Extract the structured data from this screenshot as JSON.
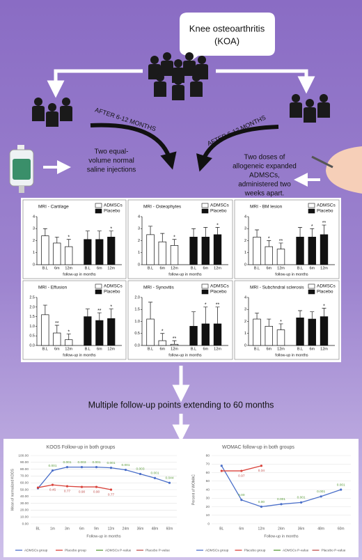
{
  "texts": {
    "bubble": [
      "Knee osteoarthritis",
      "(KOA)"
    ],
    "left_arrow": "AFTER 6-12 MONTHS",
    "right_arrow": "AFTER 6-12 MONTHS",
    "saline": [
      "Two equal-",
      "volume normal",
      "saline injections"
    ],
    "admscs": [
      "Two doses of",
      "allogeneic expanded",
      "ADMSCs,",
      "administered two",
      "weeks apart."
    ],
    "followup": "Multiple follow-up points extending to 60 months"
  },
  "chart_data": [
    {
      "type": "bar",
      "title": "MRI - Cartilage",
      "x_label": "follow-up in months",
      "categories": [
        "B.L",
        "6m",
        "12m",
        "B.L",
        "6m",
        "12m"
      ],
      "series": [
        {
          "name": "ADMSCs",
          "color": "#ffffff",
          "values": [
            2.4,
            1.8,
            1.5,
            null,
            null,
            null
          ],
          "errors": [
            0.6,
            0.5,
            0.6,
            null,
            null,
            null
          ],
          "stars": [
            null,
            null,
            "*",
            null,
            null,
            null
          ]
        },
        {
          "name": "Placebo",
          "color": "#111111",
          "values": [
            null,
            null,
            null,
            2.1,
            2.1,
            2.3
          ],
          "errors": [
            null,
            null,
            null,
            0.7,
            0.7,
            0.5
          ],
          "stars": [
            null,
            null,
            null,
            null,
            null,
            "*"
          ]
        }
      ],
      "ylim": [
        0,
        4
      ],
      "yticks": [
        0,
        1,
        2,
        3,
        4
      ]
    },
    {
      "type": "bar",
      "title": "MRI - Osteophytes",
      "x_label": "follow-up in months",
      "categories": [
        "B.L",
        "6m",
        "12m",
        "B.L",
        "6m",
        "12m"
      ],
      "series": [
        {
          "name": "ADMSCs",
          "color": "#ffffff",
          "values": [
            2.5,
            1.9,
            1.6,
            null,
            null,
            null
          ],
          "errors": [
            0.7,
            0.7,
            0.5,
            null,
            null,
            null
          ],
          "stars": [
            null,
            null,
            "*",
            null,
            null,
            null
          ]
        },
        {
          "name": "Placebo",
          "color": "#111111",
          "values": [
            null,
            null,
            null,
            2.3,
            2.3,
            2.5
          ],
          "errors": [
            null,
            null,
            null,
            0.7,
            0.8,
            0.6
          ],
          "stars": [
            null,
            null,
            null,
            null,
            null,
            "*"
          ]
        }
      ],
      "ylim": [
        0,
        4
      ],
      "yticks": [
        0,
        1,
        2,
        3,
        4
      ]
    },
    {
      "type": "bar",
      "title": "MRI - BM lesion",
      "x_label": "follow-up in months",
      "categories": [
        "B.L",
        "6m",
        "12m",
        "B.L",
        "6m",
        "12m"
      ],
      "series": [
        {
          "name": "ADMSCs",
          "color": "#ffffff",
          "values": [
            2.3,
            1.5,
            1.3,
            null,
            null,
            null
          ],
          "errors": [
            0.6,
            0.5,
            0.5,
            null,
            null,
            null
          ],
          "stars": [
            null,
            "*",
            "**",
            null,
            null,
            null
          ]
        },
        {
          "name": "Placebo",
          "color": "#111111",
          "values": [
            null,
            null,
            null,
            2.3,
            2.3,
            2.5
          ],
          "errors": [
            null,
            null,
            null,
            0.8,
            0.7,
            0.8
          ],
          "stars": [
            null,
            null,
            null,
            null,
            "*",
            "**"
          ]
        }
      ],
      "ylim": [
        0,
        4
      ],
      "yticks": [
        0,
        1,
        2,
        3,
        4
      ]
    },
    {
      "type": "bar",
      "title": "MRI - Effusion",
      "x_label": "follow-up in months",
      "categories": [
        "B.L",
        "6m",
        "12m",
        "B.L",
        "6m",
        "12m"
      ],
      "series": [
        {
          "name": "ADMSCs",
          "color": "#ffffff",
          "values": [
            1.6,
            0.65,
            0.3,
            null,
            null,
            null
          ],
          "errors": [
            0.5,
            0.4,
            0.3,
            null,
            null,
            null
          ],
          "stars": [
            null,
            "**",
            "*",
            null,
            null,
            null
          ]
        },
        {
          "name": "Placebo",
          "color": "#111111",
          "values": [
            null,
            null,
            null,
            1.5,
            1.3,
            1.4
          ],
          "errors": [
            null,
            null,
            null,
            0.4,
            0.4,
            0.5
          ],
          "stars": [
            null,
            null,
            null,
            null,
            "**",
            "*"
          ]
        }
      ],
      "ylim": [
        0,
        2.5
      ],
      "yticks": [
        {
          "value": 0,
          "label": "0.0"
        },
        0.5,
        {
          "value": 1,
          "label": "1.0"
        },
        1.5,
        {
          "value": 2,
          "label": "2.0"
        },
        2.5
      ]
    },
    {
      "type": "bar",
      "title": "MRI - Synovitis",
      "x_label": "follow-up in months",
      "categories": [
        "B.L",
        "6m",
        "12m",
        "B.L",
        "6m",
        "12m"
      ],
      "series": [
        {
          "name": "ADMSCs",
          "color": "#ffffff",
          "values": [
            1.1,
            0.2,
            0.05,
            null,
            null,
            null
          ],
          "errors": [
            0.7,
            0.3,
            0.15,
            null,
            null,
            null
          ],
          "stars": [
            null,
            "*",
            "**",
            null,
            null,
            null
          ]
        },
        {
          "name": "Placebo",
          "color": "#111111",
          "values": [
            null,
            null,
            null,
            0.8,
            0.9,
            0.9
          ],
          "errors": [
            null,
            null,
            null,
            0.6,
            0.7,
            0.7
          ],
          "stars": [
            null,
            null,
            null,
            null,
            "*",
            "**"
          ]
        }
      ],
      "ylim": [
        0,
        2
      ],
      "yticks": [
        {
          "value": 0,
          "label": "0.0"
        },
        0.5,
        {
          "value": 1,
          "label": "1.0"
        },
        1.5,
        {
          "value": 2,
          "label": "2.0"
        }
      ]
    },
    {
      "type": "bar",
      "title": "MRI - Subchndral sclerosis",
      "x_label": "follow-up in months",
      "categories": [
        "B.L",
        "6m",
        "12m",
        "B.L",
        "6m",
        "12m"
      ],
      "series": [
        {
          "name": "ADMSCs",
          "color": "#ffffff",
          "values": [
            2.2,
            1.6,
            1.3,
            null,
            null,
            null
          ],
          "errors": [
            0.5,
            0.6,
            0.5,
            null,
            null,
            null
          ],
          "stars": [
            null,
            null,
            "*",
            null,
            null,
            null
          ]
        },
        {
          "name": "Placebo",
          "color": "#111111",
          "values": [
            null,
            null,
            null,
            2.3,
            2.2,
            2.4
          ],
          "errors": [
            null,
            null,
            null,
            0.6,
            0.6,
            0.7
          ],
          "stars": [
            null,
            null,
            null,
            null,
            null,
            "*"
          ]
        }
      ],
      "ylim": [
        0,
        4
      ],
      "yticks": [
        0,
        1,
        2,
        3,
        4
      ]
    },
    {
      "type": "line",
      "title": "KOOS Follow-up in both groups",
      "x_label": "Follow-up in months",
      "y_label": "Mean of normalized KOOS",
      "categories": [
        "BL",
        "1m",
        "3m",
        "6m",
        "9m",
        "12m",
        "24m",
        "36m",
        "48m",
        "60m"
      ],
      "series": [
        {
          "name": "ADMSCs group",
          "color": "#4a6fc9",
          "values": [
            52,
            78,
            83,
            83,
            83,
            82,
            79,
            73,
            67,
            60
          ],
          "label_name": "ADMSCs P-value",
          "label_color": "#5a9a3a",
          "point_labels": [
            null,
            "0.001",
            "0.001",
            "0.003",
            "0.001",
            "0.001",
            "0.001",
            "0.003",
            "0.001",
            "0.044"
          ]
        },
        {
          "name": "Placebo group",
          "color": "#d9423a",
          "values": [
            53,
            57,
            55,
            54,
            54,
            50,
            null,
            null,
            null,
            null
          ],
          "label_name": "Placebo P-value",
          "label_color": "#c0504d",
          "point_labels": [
            null,
            "0.45",
            "0.77",
            "0.90",
            "0.90",
            "0.77",
            null,
            null,
            null,
            null
          ]
        }
      ],
      "ylim": [
        0,
        100
      ],
      "yticks": [
        {
          "value": 0,
          "label": "0.00"
        },
        {
          "value": 10,
          "label": "10.00"
        },
        {
          "value": 20,
          "label": "20.00"
        },
        {
          "value": 30,
          "label": "30.00"
        },
        {
          "value": 40,
          "label": "40.00"
        },
        {
          "value": 50,
          "label": "50.00"
        },
        {
          "value": 60,
          "label": "60.00"
        },
        {
          "value": 70,
          "label": "70.00"
        },
        {
          "value": 80,
          "label": "80.00"
        },
        {
          "value": 90,
          "label": "90.00"
        },
        {
          "value": 100,
          "label": "100.00"
        }
      ]
    },
    {
      "type": "line",
      "title": "WOMAC follow-up in both groups",
      "x_label": "Follow-up in months",
      "y_label": "Percent of WOMAC",
      "categories": [
        "BL",
        "6m",
        "12m",
        "24m",
        "36m",
        "48m",
        "60m"
      ],
      "series": [
        {
          "name": "ADMSCs group",
          "color": "#4a6fc9",
          "values": [
            68,
            28,
            20,
            23,
            25,
            32,
            40
          ],
          "label_name": "ADMSCs P-value",
          "label_color": "#5a9a3a",
          "point_labels": [
            null,
            "0.00",
            "0.00",
            "0.001",
            "0.001",
            "0.001",
            "0.001"
          ]
        },
        {
          "name": "Placebo group",
          "color": "#d9423a",
          "values": [
            62,
            62,
            68,
            null,
            null,
            null,
            null
          ],
          "label_name": "Placebo P-value",
          "label_color": "#c0504d",
          "point_labels": [
            null,
            "0.97",
            "0.34",
            null,
            null,
            null,
            null
          ]
        }
      ],
      "ylim": [
        0,
        80
      ],
      "yticks": [
        0,
        10,
        20,
        30,
        40,
        50,
        60,
        70,
        80
      ]
    }
  ]
}
